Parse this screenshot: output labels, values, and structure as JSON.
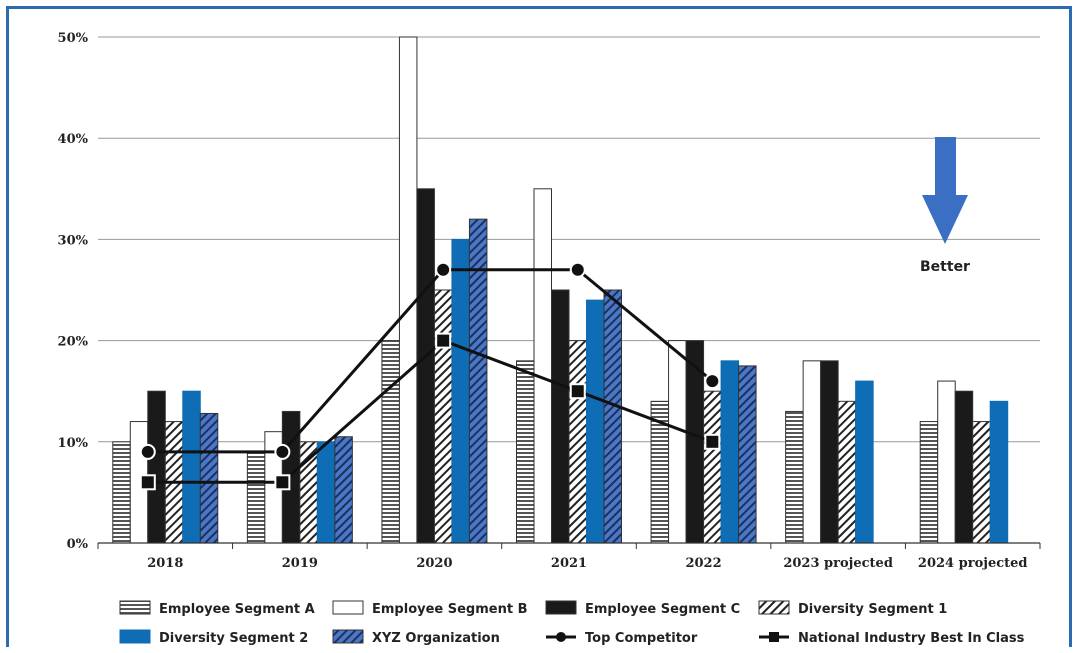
{
  "chart_data": {
    "type": "bar",
    "title": "",
    "xlabel": "",
    "ylabel": "",
    "ylim": [
      0,
      50
    ],
    "y_ticks": [
      "0%",
      "10%",
      "20%",
      "30%",
      "40%",
      "50%"
    ],
    "grid": true,
    "legend_position": "bottom",
    "categories": [
      "2018",
      "2019",
      "2020",
      "2021",
      "2022",
      "2023 projected",
      "2024 projected"
    ],
    "series": [
      {
        "name": "Employee Segment A",
        "style": "horizontal-stripe",
        "color": "#555555",
        "values": [
          10,
          9,
          20,
          18,
          14,
          13,
          12
        ]
      },
      {
        "name": "Employee Segment B",
        "style": "white",
        "color": "#ffffff",
        "values": [
          12,
          11,
          50,
          35,
          20,
          18,
          16
        ]
      },
      {
        "name": "Employee Segment C",
        "style": "solid",
        "color": "#1a1a1a",
        "values": [
          15,
          13,
          35,
          25,
          20,
          18,
          15
        ]
      },
      {
        "name": "Diversity Segment 1",
        "style": "diagonal-white",
        "color": "#ffffff",
        "values": [
          12,
          10,
          25,
          20,
          15,
          14,
          12
        ]
      },
      {
        "name": "Diversity Segment 2",
        "style": "solid",
        "color": "#0f6db5",
        "values": [
          15,
          10,
          30,
          24,
          18,
          16,
          14
        ]
      },
      {
        "name": "XYZ Organization",
        "style": "diagonal-blue",
        "color": "#4a78c6",
        "values": [
          12.8,
          10.5,
          32,
          25,
          17.5,
          null,
          null
        ]
      }
    ],
    "lines": [
      {
        "name": "Top Competitor",
        "marker": "circle",
        "values": [
          9,
          9,
          27,
          27,
          16,
          null,
          null
        ]
      },
      {
        "name": "National Industry Best In Class",
        "marker": "square",
        "values": [
          6,
          6,
          20,
          15,
          10,
          null,
          null
        ]
      }
    ],
    "annotation": {
      "text": "Better",
      "arrow_color": "#3a6fc4",
      "arrow_direction": "down"
    }
  }
}
